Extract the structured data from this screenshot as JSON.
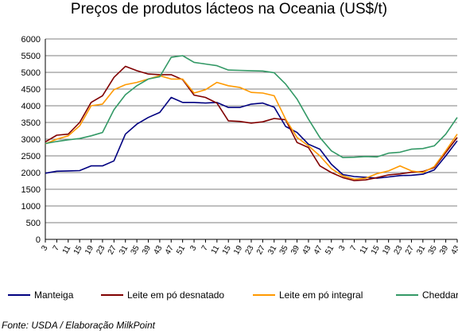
{
  "chart_data": {
    "type": "line",
    "title": "Preços de produtos lácteos na Oceania (US$/t)",
    "xlabel": "",
    "ylabel": "",
    "ylim": [
      0,
      6000
    ],
    "yticks": [
      0,
      500,
      1000,
      1500,
      2000,
      2500,
      3000,
      3500,
      4000,
      4500,
      5000,
      5500,
      6000
    ],
    "grid": "horizontal",
    "legend_position": "bottom",
    "x_tick_labels": [
      "3",
      "7",
      "11",
      "15",
      "19",
      "23",
      "27",
      "31",
      "35",
      "39",
      "43",
      "47",
      "51",
      "3",
      "7",
      "11",
      "15",
      "19",
      "23",
      "27",
      "31",
      "35",
      "39",
      "43",
      "47",
      "51",
      "3",
      "7",
      "11",
      "15",
      "19",
      "23",
      "27",
      "31",
      "35",
      "39",
      "43"
    ],
    "series": [
      {
        "name": "Manteiga",
        "color": "#000080",
        "values": [
          1980,
          2040,
          2050,
          2060,
          2200,
          2200,
          2350,
          3150,
          3450,
          3650,
          3800,
          4250,
          4100,
          4100,
          4080,
          4100,
          3950,
          3950,
          4050,
          4080,
          3960,
          3380,
          3200,
          2850,
          2700,
          2250,
          1940,
          1880,
          1860,
          1830,
          1870,
          1910,
          1920,
          1950,
          2080,
          2500,
          2950
        ]
      },
      {
        "name": "Leite em pó desnatado",
        "color": "#800000",
        "values": [
          2920,
          3120,
          3150,
          3500,
          4100,
          4300,
          4850,
          5180,
          5050,
          4950,
          4930,
          4930,
          4780,
          4320,
          4250,
          4080,
          3550,
          3530,
          3480,
          3520,
          3620,
          3580,
          2900,
          2750,
          2200,
          2000,
          1850,
          1760,
          1780,
          1850,
          1930,
          1960,
          2010,
          2030,
          2150,
          2600,
          3050
        ]
      },
      {
        "name": "Leite em pó integral",
        "color": "#FF9900",
        "values": [
          2860,
          3000,
          3100,
          3400,
          4000,
          4050,
          4480,
          4630,
          4700,
          4800,
          4900,
          4800,
          4800,
          4380,
          4480,
          4700,
          4600,
          4550,
          4400,
          4380,
          4300,
          3600,
          3050,
          2800,
          2500,
          2120,
          1900,
          1800,
          1830,
          1970,
          2050,
          2200,
          2050,
          2000,
          2180,
          2650,
          3150
        ]
      },
      {
        "name": "Cheddar",
        "color": "#339966",
        "values": [
          2870,
          2930,
          2980,
          3020,
          3100,
          3200,
          3880,
          4330,
          4600,
          4800,
          4870,
          5450,
          5500,
          5300,
          5250,
          5200,
          5070,
          5060,
          5050,
          5040,
          4990,
          4650,
          4200,
          3600,
          3050,
          2650,
          2450,
          2460,
          2480,
          2470,
          2580,
          2610,
          2700,
          2720,
          2800,
          3150,
          3650
        ]
      }
    ]
  },
  "source_note": "Fonte: USDA / Elaboração MilkPoint"
}
